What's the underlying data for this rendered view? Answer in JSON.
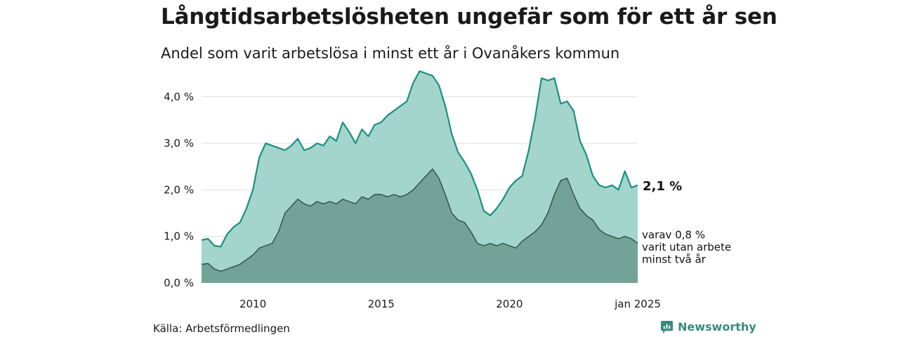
{
  "header": {
    "title": "Långtidsarbetslösheten ungefär som för ett år sen",
    "subtitle": "Andel som varit arbetslösa i minst ett år i Ovanåkers kommun"
  },
  "footer": {
    "source": "Källa: Arbetsförmedlingen",
    "brand": "Newsworthy"
  },
  "colors": {
    "total_line": "#1a9080",
    "total_fill": "#a3d5cd",
    "long_line": "#2f4e46",
    "long_fill": "#73a398",
    "grid": "#dddddd",
    "brand": "#3a8a7e"
  },
  "chart_data": {
    "type": "area",
    "x_start": "2008-01",
    "x_end": "2025-01",
    "xlim": [
      2008.0,
      2025.0
    ],
    "ylim": [
      0,
      4.6
    ],
    "yticks": [
      0,
      1,
      2,
      3,
      4
    ],
    "ytick_labels": [
      "0,0 %",
      "1,0 %",
      "2,0 %",
      "3,0 %",
      "4,0 %"
    ],
    "xticks": [
      2010,
      2015,
      2020,
      2025
    ],
    "xtick_labels": [
      "2010",
      "2015",
      "2020",
      "jan 2025"
    ],
    "grid": true,
    "series": [
      {
        "key": "total",
        "end_label": "2,1 %",
        "points": [
          [
            2008.0,
            0.92
          ],
          [
            2008.25,
            0.95
          ],
          [
            2008.5,
            0.8
          ],
          [
            2008.75,
            0.78
          ],
          [
            2009.0,
            1.05
          ],
          [
            2009.25,
            1.2
          ],
          [
            2009.5,
            1.3
          ],
          [
            2009.75,
            1.6
          ],
          [
            2010.0,
            2.0
          ],
          [
            2010.25,
            2.7
          ],
          [
            2010.5,
            3.0
          ],
          [
            2010.75,
            2.95
          ],
          [
            2011.0,
            2.9
          ],
          [
            2011.25,
            2.85
          ],
          [
            2011.5,
            2.95
          ],
          [
            2011.75,
            3.1
          ],
          [
            2012.0,
            2.85
          ],
          [
            2012.25,
            2.9
          ],
          [
            2012.5,
            3.0
          ],
          [
            2012.75,
            2.95
          ],
          [
            2013.0,
            3.15
          ],
          [
            2013.25,
            3.05
          ],
          [
            2013.5,
            3.45
          ],
          [
            2013.75,
            3.25
          ],
          [
            2014.0,
            3.0
          ],
          [
            2014.25,
            3.3
          ],
          [
            2014.5,
            3.15
          ],
          [
            2014.75,
            3.4
          ],
          [
            2015.0,
            3.45
          ],
          [
            2015.25,
            3.6
          ],
          [
            2015.5,
            3.7
          ],
          [
            2015.75,
            3.8
          ],
          [
            2016.0,
            3.9
          ],
          [
            2016.25,
            4.3
          ],
          [
            2016.5,
            4.55
          ],
          [
            2016.75,
            4.5
          ],
          [
            2017.0,
            4.45
          ],
          [
            2017.25,
            4.25
          ],
          [
            2017.5,
            3.8
          ],
          [
            2017.75,
            3.2
          ],
          [
            2018.0,
            2.8
          ],
          [
            2018.25,
            2.6
          ],
          [
            2018.5,
            2.35
          ],
          [
            2018.75,
            2.0
          ],
          [
            2019.0,
            1.55
          ],
          [
            2019.25,
            1.45
          ],
          [
            2019.5,
            1.6
          ],
          [
            2019.75,
            1.8
          ],
          [
            2020.0,
            2.05
          ],
          [
            2020.25,
            2.2
          ],
          [
            2020.5,
            2.3
          ],
          [
            2020.75,
            2.85
          ],
          [
            2021.0,
            3.55
          ],
          [
            2021.25,
            4.4
          ],
          [
            2021.5,
            4.35
          ],
          [
            2021.75,
            4.4
          ],
          [
            2022.0,
            3.85
          ],
          [
            2022.25,
            3.9
          ],
          [
            2022.5,
            3.7
          ],
          [
            2022.75,
            3.05
          ],
          [
            2023.0,
            2.75
          ],
          [
            2023.25,
            2.3
          ],
          [
            2023.5,
            2.1
          ],
          [
            2023.75,
            2.05
          ],
          [
            2024.0,
            2.1
          ],
          [
            2024.25,
            2.0
          ],
          [
            2024.5,
            2.4
          ],
          [
            2024.75,
            2.05
          ],
          [
            2025.0,
            2.1
          ]
        ]
      },
      {
        "key": "long",
        "end_label": "varav 0,8 % varit utan arbete minst två år",
        "end_label_lines": [
          "varav 0,8 %",
          "varit utan arbete",
          "minst två år"
        ],
        "points": [
          [
            2008.0,
            0.4
          ],
          [
            2008.25,
            0.42
          ],
          [
            2008.5,
            0.3
          ],
          [
            2008.75,
            0.25
          ],
          [
            2009.0,
            0.3
          ],
          [
            2009.25,
            0.35
          ],
          [
            2009.5,
            0.4
          ],
          [
            2009.75,
            0.5
          ],
          [
            2010.0,
            0.6
          ],
          [
            2010.25,
            0.75
          ],
          [
            2010.5,
            0.8
          ],
          [
            2010.75,
            0.85
          ],
          [
            2011.0,
            1.1
          ],
          [
            2011.25,
            1.5
          ],
          [
            2011.5,
            1.65
          ],
          [
            2011.75,
            1.8
          ],
          [
            2012.0,
            1.7
          ],
          [
            2012.25,
            1.65
          ],
          [
            2012.5,
            1.75
          ],
          [
            2012.75,
            1.7
          ],
          [
            2013.0,
            1.75
          ],
          [
            2013.25,
            1.7
          ],
          [
            2013.5,
            1.8
          ],
          [
            2013.75,
            1.75
          ],
          [
            2014.0,
            1.7
          ],
          [
            2014.25,
            1.85
          ],
          [
            2014.5,
            1.8
          ],
          [
            2014.75,
            1.9
          ],
          [
            2015.0,
            1.9
          ],
          [
            2015.25,
            1.85
          ],
          [
            2015.5,
            1.9
          ],
          [
            2015.75,
            1.85
          ],
          [
            2016.0,
            1.9
          ],
          [
            2016.25,
            2.0
          ],
          [
            2016.5,
            2.15
          ],
          [
            2016.75,
            2.3
          ],
          [
            2017.0,
            2.45
          ],
          [
            2017.25,
            2.25
          ],
          [
            2017.5,
            1.9
          ],
          [
            2017.75,
            1.5
          ],
          [
            2018.0,
            1.35
          ],
          [
            2018.25,
            1.3
          ],
          [
            2018.5,
            1.1
          ],
          [
            2018.75,
            0.85
          ],
          [
            2019.0,
            0.8
          ],
          [
            2019.25,
            0.85
          ],
          [
            2019.5,
            0.8
          ],
          [
            2019.75,
            0.85
          ],
          [
            2020.0,
            0.8
          ],
          [
            2020.25,
            0.75
          ],
          [
            2020.5,
            0.9
          ],
          [
            2020.75,
            1.0
          ],
          [
            2021.0,
            1.1
          ],
          [
            2021.25,
            1.25
          ],
          [
            2021.5,
            1.5
          ],
          [
            2021.75,
            1.9
          ],
          [
            2022.0,
            2.2
          ],
          [
            2022.25,
            2.25
          ],
          [
            2022.5,
            1.9
          ],
          [
            2022.75,
            1.6
          ],
          [
            2023.0,
            1.45
          ],
          [
            2023.25,
            1.35
          ],
          [
            2023.5,
            1.15
          ],
          [
            2023.75,
            1.05
          ],
          [
            2024.0,
            1.0
          ],
          [
            2024.25,
            0.95
          ],
          [
            2024.5,
            1.0
          ],
          [
            2024.75,
            0.95
          ],
          [
            2025.0,
            0.85
          ]
        ]
      }
    ]
  }
}
